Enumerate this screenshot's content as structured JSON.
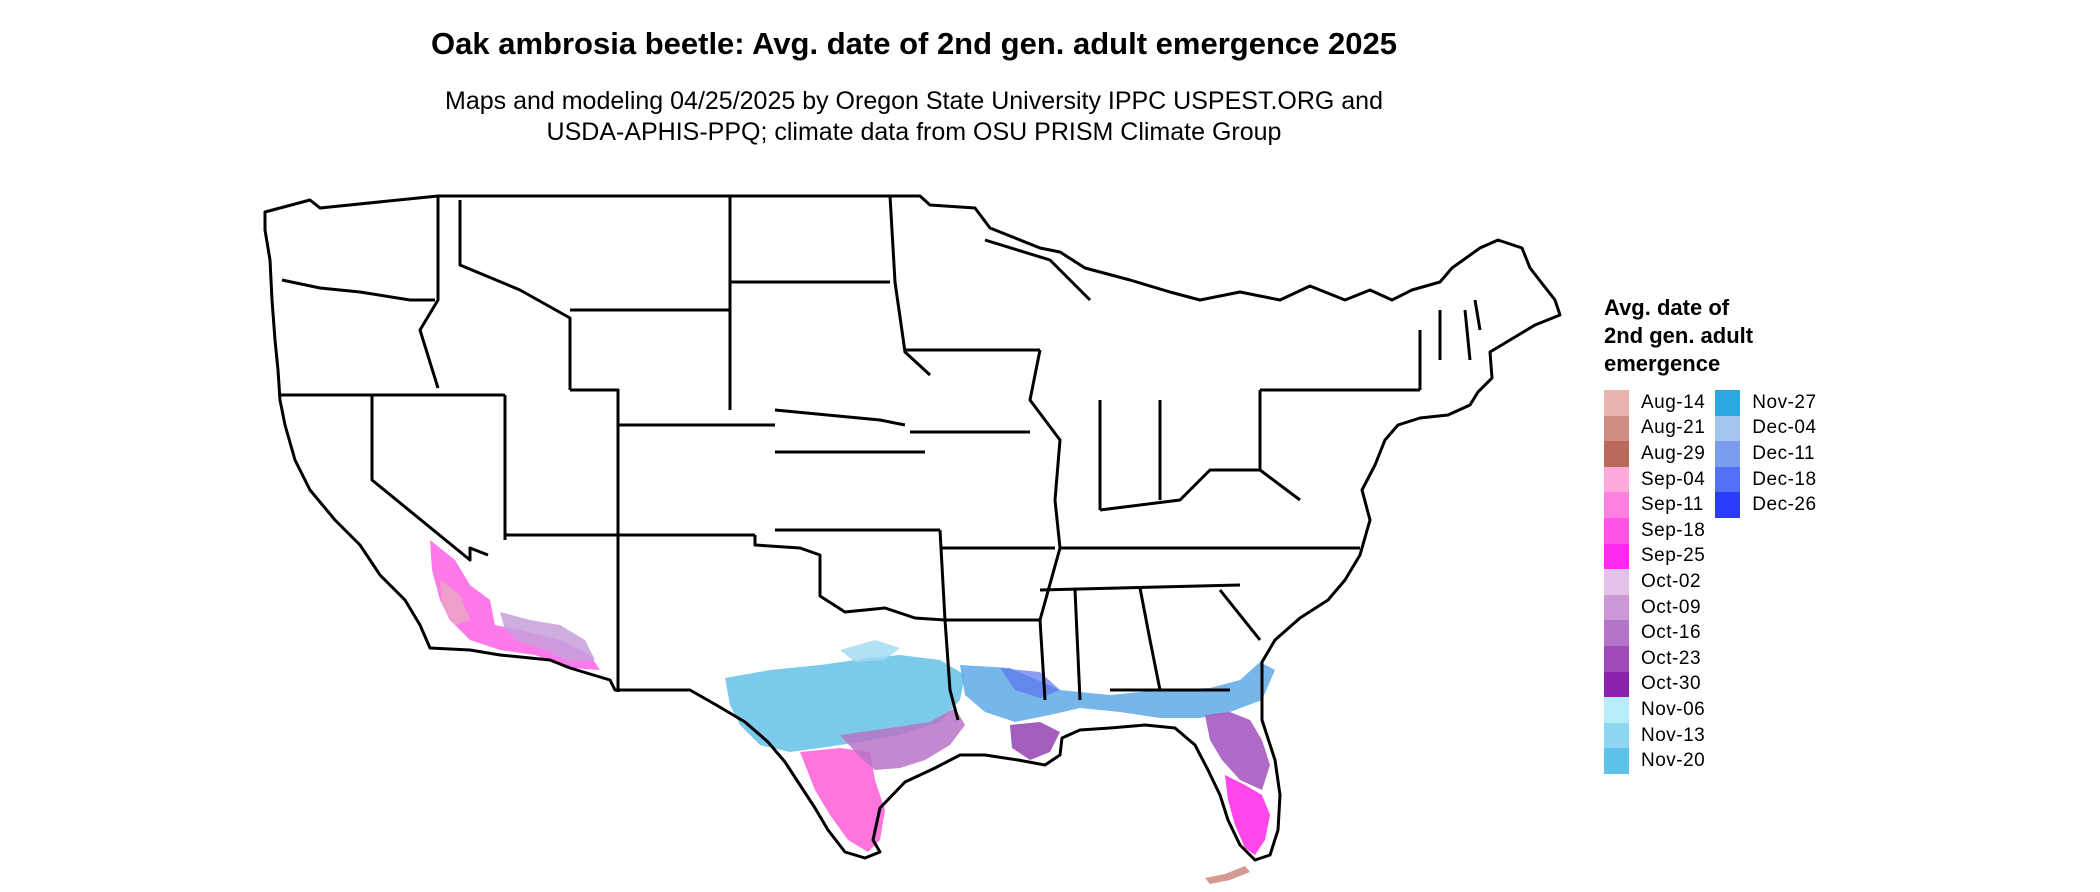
{
  "header": {
    "title": "Oak ambrosia beetle: Avg. date of 2nd gen. adult emergence 2025",
    "subtitle_line1": "Maps and modeling 04/25/2025 by Oregon State University IPPC USPEST.ORG and",
    "subtitle_line2": "USDA-APHIS-PPQ; climate data from OSU PRISM Climate Group"
  },
  "legend": {
    "title_line1": "Avg. date of",
    "title_line2": "2nd gen. adult",
    "title_line3": "emergence",
    "items": [
      {
        "label": "Aug-14",
        "color": "#e8b4ae"
      },
      {
        "label": "Aug-21",
        "color": "#cf8e84"
      },
      {
        "label": "Aug-29",
        "color": "#b96a5d"
      },
      {
        "label": "Sep-04",
        "color": "#ffaadf"
      },
      {
        "label": "Sep-11",
        "color": "#ff80df"
      },
      {
        "label": "Sep-18",
        "color": "#ff55e6"
      },
      {
        "label": "Sep-25",
        "color": "#ff2af0"
      },
      {
        "label": "Oct-02",
        "color": "#e3c3ea"
      },
      {
        "label": "Oct-09",
        "color": "#cc99d6"
      },
      {
        "label": "Oct-16",
        "color": "#b474c8"
      },
      {
        "label": "Oct-23",
        "color": "#9f4bba"
      },
      {
        "label": "Oct-30",
        "color": "#8b22ad"
      },
      {
        "label": "Nov-06",
        "color": "#b7eefa"
      },
      {
        "label": "Nov-13",
        "color": "#8dd7f0"
      },
      {
        "label": "Nov-20",
        "color": "#5ec2ea"
      },
      {
        "label": "Nov-27",
        "color": "#2aa7e0"
      },
      {
        "label": "Dec-04",
        "color": "#a3c5ee"
      },
      {
        "label": "Dec-11",
        "color": "#7a9df0"
      },
      {
        "label": "Dec-18",
        "color": "#5470f4"
      },
      {
        "label": "Dec-26",
        "color": "#2a3bfa"
      }
    ]
  }
}
